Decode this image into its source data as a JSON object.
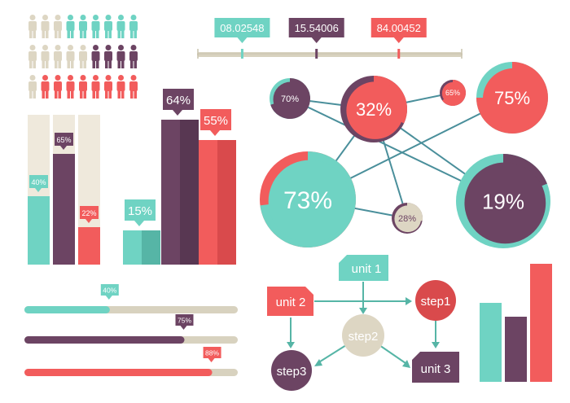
{
  "colors": {
    "teal": "#6fd3c3",
    "teal_dark": "#56b5a6",
    "purple": "#6c4463",
    "purple_dark": "#583752",
    "coral": "#f25c5c",
    "coral_dark": "#d94a4c",
    "beige": "#ddd6c3",
    "beige_light": "#efe9dc",
    "track": "#d8d2bf"
  },
  "people_pictogram": {
    "rows": [
      {
        "filled": 6,
        "color": "teal"
      },
      {
        "filled": 4,
        "color": "purple"
      },
      {
        "filled": 8,
        "color": "coral"
      }
    ],
    "total_per_row": 9
  },
  "timeline": {
    "markers": [
      {
        "value": "08.02548",
        "color": "teal",
        "position": 0.17
      },
      {
        "value": "15.54006",
        "color": "purple",
        "position": 0.45
      },
      {
        "value": "84.00452",
        "color": "coral",
        "position": 0.76
      }
    ]
  },
  "vertical_bars_left": [
    {
      "label": "40%",
      "value": 0.4,
      "color": "teal"
    },
    {
      "label": "65%",
      "value": 0.65,
      "color": "purple"
    },
    {
      "label": "22%",
      "value": 0.22,
      "color": "coral"
    }
  ],
  "vertical_bars_3d": [
    {
      "label": "15%",
      "value": 0.15,
      "color": "teal"
    },
    {
      "label": "64%",
      "value": 0.64,
      "color": "purple"
    },
    {
      "label": "55%",
      "value": 0.55,
      "color": "coral"
    }
  ],
  "network": {
    "nodes": [
      {
        "id": "n70",
        "label": "70%",
        "value": 0.7,
        "color": "purple",
        "ring": "teal"
      },
      {
        "id": "n32",
        "label": "32%",
        "value": 0.32,
        "color": "coral",
        "ring": "purple"
      },
      {
        "id": "n65",
        "label": "65%",
        "value": 0.65,
        "color": "coral",
        "ring": "purple"
      },
      {
        "id": "n75",
        "label": "75%",
        "value": 0.75,
        "color": "coral",
        "ring": "teal"
      },
      {
        "id": "n73",
        "label": "73%",
        "value": 0.73,
        "color": "teal",
        "ring": "coral"
      },
      {
        "id": "n28",
        "label": "28%",
        "value": 0.28,
        "color": "beige",
        "ring": "purple"
      },
      {
        "id": "n19",
        "label": "19%",
        "value": 0.19,
        "color": "purple",
        "ring": "teal"
      }
    ],
    "edges": [
      [
        "n70",
        "n32"
      ],
      [
        "n32",
        "n65"
      ],
      [
        "n70",
        "n19"
      ],
      [
        "n32",
        "n28"
      ],
      [
        "n32",
        "n73"
      ],
      [
        "n73",
        "n75"
      ],
      [
        "n73",
        "n28"
      ],
      [
        "n32",
        "n19"
      ]
    ]
  },
  "progress_bars": [
    {
      "label": "40%",
      "value": 0.4,
      "color": "teal"
    },
    {
      "label": "75%",
      "value": 0.75,
      "color": "purple"
    },
    {
      "label": "88%",
      "value": 0.88,
      "color": "coral"
    }
  ],
  "flowchart": {
    "unit1": "unit 1",
    "unit2": "unit 2",
    "unit3": "unit 3",
    "step1": "step1",
    "step2": "step2",
    "step3": "step3"
  },
  "bottom_right_bars": [
    {
      "value": 0.67,
      "color": "teal"
    },
    {
      "value": 0.55,
      "color": "purple"
    },
    {
      "value": 1.0,
      "color": "coral"
    }
  ]
}
